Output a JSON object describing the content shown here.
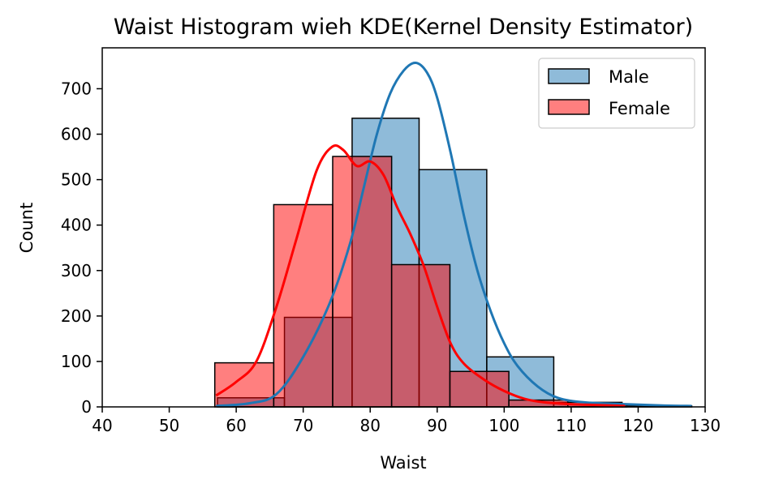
{
  "chart_data": {
    "type": "histogram",
    "title": "Waist  Histogram wieh KDE(Kernel Density Estimator)",
    "xlabel": "Waist",
    "ylabel": "Count",
    "xlim": [
      40,
      130
    ],
    "ylim": [
      0,
      790
    ],
    "xticks": [
      40,
      50,
      60,
      70,
      80,
      90,
      100,
      110,
      120,
      130
    ],
    "yticks": [
      0,
      100,
      200,
      300,
      400,
      500,
      600,
      700
    ],
    "grid": false,
    "legend": {
      "position": "top-right",
      "entries": [
        "Male",
        "Female"
      ]
    },
    "series": [
      {
        "name": "Male",
        "color": "#1f77b4",
        "bins": [
          {
            "x0": 57.2,
            "x1": 67.2,
            "count": 20
          },
          {
            "x0": 67.2,
            "x1": 77.3,
            "count": 197
          },
          {
            "x0": 77.3,
            "x1": 87.3,
            "count": 635
          },
          {
            "x0": 87.3,
            "x1": 97.4,
            "count": 522
          },
          {
            "x0": 97.4,
            "x1": 107.4,
            "count": 110
          },
          {
            "x0": 107.4,
            "x1": 117.6,
            "count": 10
          },
          {
            "x0": 117.6,
            "x1": 128.0,
            "count": 2
          }
        ],
        "kde": [
          [
            57,
            2
          ],
          [
            62,
            8
          ],
          [
            66,
            28
          ],
          [
            70,
            110
          ],
          [
            74,
            230
          ],
          [
            77,
            360
          ],
          [
            79,
            480
          ],
          [
            81,
            600
          ],
          [
            83,
            690
          ],
          [
            85,
            740
          ],
          [
            86.8,
            757
          ],
          [
            88.5,
            735
          ],
          [
            90,
            680
          ],
          [
            92,
            560
          ],
          [
            94,
            420
          ],
          [
            96,
            300
          ],
          [
            98,
            210
          ],
          [
            100,
            140
          ],
          [
            102,
            90
          ],
          [
            105,
            45
          ],
          [
            108,
            20
          ],
          [
            112,
            10
          ],
          [
            118,
            6
          ],
          [
            124,
            3
          ],
          [
            128,
            2
          ]
        ]
      },
      {
        "name": "Female",
        "color": "#ff0000",
        "bins": [
          {
            "x0": 56.8,
            "x1": 65.6,
            "count": 97
          },
          {
            "x0": 65.6,
            "x1": 74.4,
            "count": 445
          },
          {
            "x0": 74.4,
            "x1": 83.2,
            "count": 551
          },
          {
            "x0": 83.2,
            "x1": 91.9,
            "count": 313
          },
          {
            "x0": 91.9,
            "x1": 100.7,
            "count": 78
          },
          {
            "x0": 100.7,
            "x1": 109.5,
            "count": 15
          },
          {
            "x0": 109.5,
            "x1": 118.3,
            "count": 5
          }
        ],
        "kde": [
          [
            57,
            25
          ],
          [
            60,
            55
          ],
          [
            63,
            100
          ],
          [
            66,
            220
          ],
          [
            69,
            370
          ],
          [
            72,
            520
          ],
          [
            74.3,
            572
          ],
          [
            76,
            565
          ],
          [
            78,
            530
          ],
          [
            80,
            540
          ],
          [
            82,
            510
          ],
          [
            84,
            440
          ],
          [
            86,
            380
          ],
          [
            88,
            310
          ],
          [
            90,
            220
          ],
          [
            92,
            140
          ],
          [
            94,
            95
          ],
          [
            97,
            60
          ],
          [
            100,
            35
          ],
          [
            103,
            18
          ],
          [
            106,
            10
          ],
          [
            110,
            6
          ],
          [
            114,
            4
          ],
          [
            118,
            2
          ]
        ]
      }
    ]
  }
}
